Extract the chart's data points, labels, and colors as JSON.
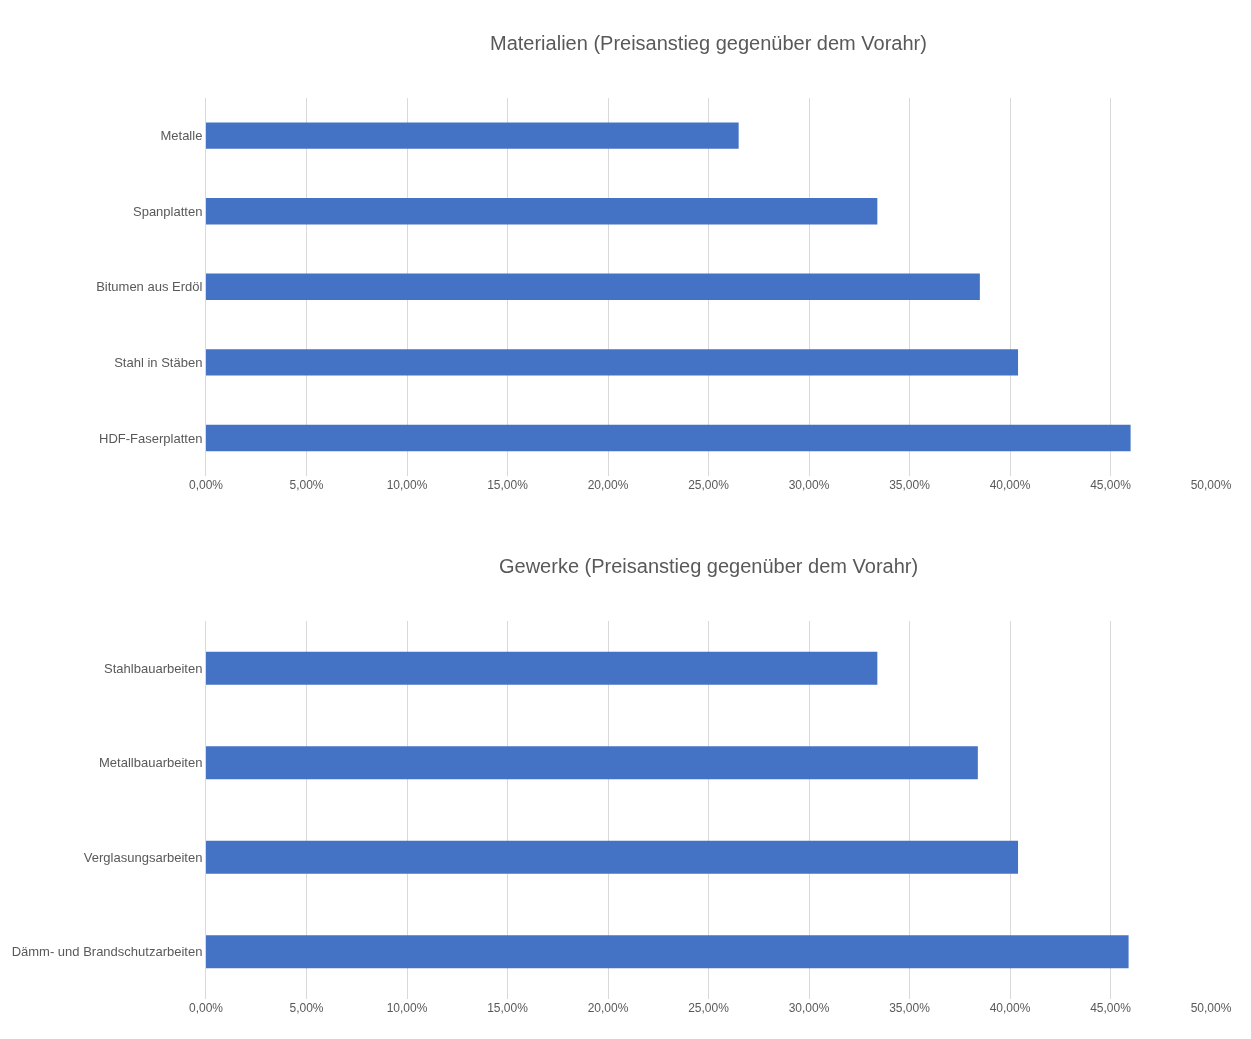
{
  "chart_data": [
    {
      "type": "bar",
      "orientation": "horizontal",
      "title": "Materialien (Preisanstieg gegenüber dem Vorahr)",
      "categories": [
        "Metalle",
        "Spanplatten",
        "Bitumen aus Erdöl",
        "Stahl in Stäben",
        "HDF-Faserplatten"
      ],
      "values": [
        26.5,
        33.4,
        38.5,
        40.4,
        46.0
      ],
      "color": "#4472c4",
      "xlim": [
        0,
        50
      ],
      "xticks": [
        {
          "value": 0,
          "label": "0,00%"
        },
        {
          "value": 5,
          "label": "5,00%"
        },
        {
          "value": 10,
          "label": "10,00%"
        },
        {
          "value": 15,
          "label": "15,00%"
        },
        {
          "value": 20,
          "label": "20,00%"
        },
        {
          "value": 25,
          "label": "25,00%"
        },
        {
          "value": 30,
          "label": "30,00%"
        },
        {
          "value": 35,
          "label": "35,00%"
        },
        {
          "value": 40,
          "label": "40,00%"
        },
        {
          "value": 45,
          "label": "45,00%"
        },
        {
          "value": 50,
          "label": "50,00%"
        }
      ],
      "grid": "x"
    },
    {
      "type": "bar",
      "orientation": "horizontal",
      "title": "Gewerke (Preisanstieg gegenüber dem Vorahr)",
      "categories": [
        "Stahlbauarbeiten",
        "Metallbauarbeiten",
        "Verglasungsarbeiten",
        "Dämm- und Brandschutzarbeiten"
      ],
      "values": [
        33.4,
        38.4,
        40.4,
        45.9
      ],
      "color": "#4472c4",
      "xlim": [
        0,
        50
      ],
      "xticks": [
        {
          "value": 0,
          "label": "0,00%"
        },
        {
          "value": 5,
          "label": "5,00%"
        },
        {
          "value": 10,
          "label": "10,00%"
        },
        {
          "value": 15,
          "label": "15,00%"
        },
        {
          "value": 20,
          "label": "20,00%"
        },
        {
          "value": 25,
          "label": "25,00%"
        },
        {
          "value": 30,
          "label": "30,00%"
        },
        {
          "value": 35,
          "label": "35,00%"
        },
        {
          "value": 40,
          "label": "40,00%"
        },
        {
          "value": 45,
          "label": "45,00%"
        },
        {
          "value": 50,
          "label": "50,00%"
        }
      ],
      "grid": "x"
    }
  ]
}
